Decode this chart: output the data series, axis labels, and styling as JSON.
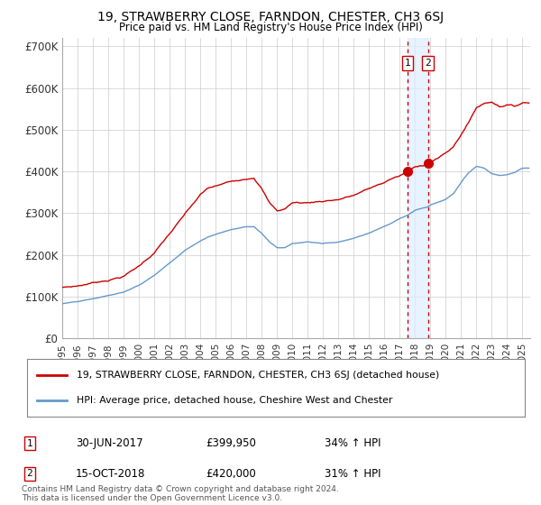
{
  "title": "19, STRAWBERRY CLOSE, FARNDON, CHESTER, CH3 6SJ",
  "subtitle": "Price paid vs. HM Land Registry's House Price Index (HPI)",
  "legend_line1": "19, STRAWBERRY CLOSE, FARNDON, CHESTER, CH3 6SJ (detached house)",
  "legend_line2": "HPI: Average price, detached house, Cheshire West and Chester",
  "footnote": "Contains HM Land Registry data © Crown copyright and database right 2024.\nThis data is licensed under the Open Government Licence v3.0.",
  "marker1_date": "30-JUN-2017",
  "marker1_price": "£399,950",
  "marker1_hpi": "34% ↑ HPI",
  "marker2_date": "15-OCT-2018",
  "marker2_price": "£420,000",
  "marker2_hpi": "31% ↑ HPI",
  "red_color": "#cc0000",
  "blue_color": "#6699cc",
  "ylim": [
    0,
    720000
  ],
  "yticks": [
    0,
    100000,
    200000,
    300000,
    400000,
    500000,
    600000,
    700000
  ],
  "ytick_labels": [
    "£0",
    "£100K",
    "£200K",
    "£300K",
    "£400K",
    "£500K",
    "£600K",
    "£700K"
  ],
  "background_color": "#ffffff",
  "grid_color": "#cccccc",
  "m1_year": 2017.5,
  "m1_val": 399950,
  "m2_year": 2018.833,
  "m2_val": 420000,
  "red_points": [
    [
      1995.0,
      118000
    ],
    [
      1996.0,
      122000
    ],
    [
      1997.0,
      130000
    ],
    [
      1998.0,
      138000
    ],
    [
      1999.0,
      148000
    ],
    [
      2000.0,
      172000
    ],
    [
      2001.0,
      205000
    ],
    [
      2002.0,
      250000
    ],
    [
      2003.0,
      295000
    ],
    [
      2004.0,
      340000
    ],
    [
      2004.5,
      355000
    ],
    [
      2005.0,
      360000
    ],
    [
      2006.0,
      370000
    ],
    [
      2007.0,
      380000
    ],
    [
      2007.5,
      385000
    ],
    [
      2008.0,
      360000
    ],
    [
      2008.5,
      325000
    ],
    [
      2009.0,
      305000
    ],
    [
      2009.5,
      310000
    ],
    [
      2010.0,
      325000
    ],
    [
      2011.0,
      325000
    ],
    [
      2012.0,
      330000
    ],
    [
      2013.0,
      335000
    ],
    [
      2014.0,
      345000
    ],
    [
      2015.0,
      360000
    ],
    [
      2016.0,
      375000
    ],
    [
      2016.5,
      385000
    ],
    [
      2017.0,
      390000
    ],
    [
      2017.5,
      400000
    ],
    [
      2018.0,
      410000
    ],
    [
      2018.833,
      420000
    ],
    [
      2019.0,
      425000
    ],
    [
      2019.5,
      435000
    ],
    [
      2020.0,
      445000
    ],
    [
      2020.5,
      460000
    ],
    [
      2021.0,
      490000
    ],
    [
      2021.5,
      520000
    ],
    [
      2022.0,
      555000
    ],
    [
      2022.5,
      565000
    ],
    [
      2023.0,
      570000
    ],
    [
      2023.5,
      560000
    ],
    [
      2024.0,
      565000
    ],
    [
      2024.5,
      560000
    ],
    [
      2025.0,
      570000
    ]
  ],
  "blue_points": [
    [
      1995.0,
      82000
    ],
    [
      1996.0,
      86000
    ],
    [
      1997.0,
      92000
    ],
    [
      1998.0,
      100000
    ],
    [
      1999.0,
      108000
    ],
    [
      2000.0,
      124000
    ],
    [
      2001.0,
      148000
    ],
    [
      2002.0,
      178000
    ],
    [
      2003.0,
      208000
    ],
    [
      2004.0,
      232000
    ],
    [
      2004.5,
      242000
    ],
    [
      2005.0,
      248000
    ],
    [
      2006.0,
      260000
    ],
    [
      2007.0,
      268000
    ],
    [
      2007.5,
      268000
    ],
    [
      2008.0,
      252000
    ],
    [
      2008.5,
      232000
    ],
    [
      2009.0,
      218000
    ],
    [
      2009.5,
      218000
    ],
    [
      2010.0,
      228000
    ],
    [
      2011.0,
      232000
    ],
    [
      2012.0,
      228000
    ],
    [
      2013.0,
      232000
    ],
    [
      2014.0,
      242000
    ],
    [
      2015.0,
      255000
    ],
    [
      2016.0,
      272000
    ],
    [
      2016.5,
      280000
    ],
    [
      2017.0,
      290000
    ],
    [
      2017.5,
      298000
    ],
    [
      2018.0,
      310000
    ],
    [
      2018.833,
      318000
    ],
    [
      2019.0,
      322000
    ],
    [
      2019.5,
      328000
    ],
    [
      2020.0,
      335000
    ],
    [
      2020.5,
      348000
    ],
    [
      2021.0,
      375000
    ],
    [
      2021.5,
      398000
    ],
    [
      2022.0,
      412000
    ],
    [
      2022.5,
      408000
    ],
    [
      2023.0,
      395000
    ],
    [
      2023.5,
      390000
    ],
    [
      2024.0,
      392000
    ],
    [
      2024.5,
      398000
    ],
    [
      2025.0,
      408000
    ]
  ]
}
